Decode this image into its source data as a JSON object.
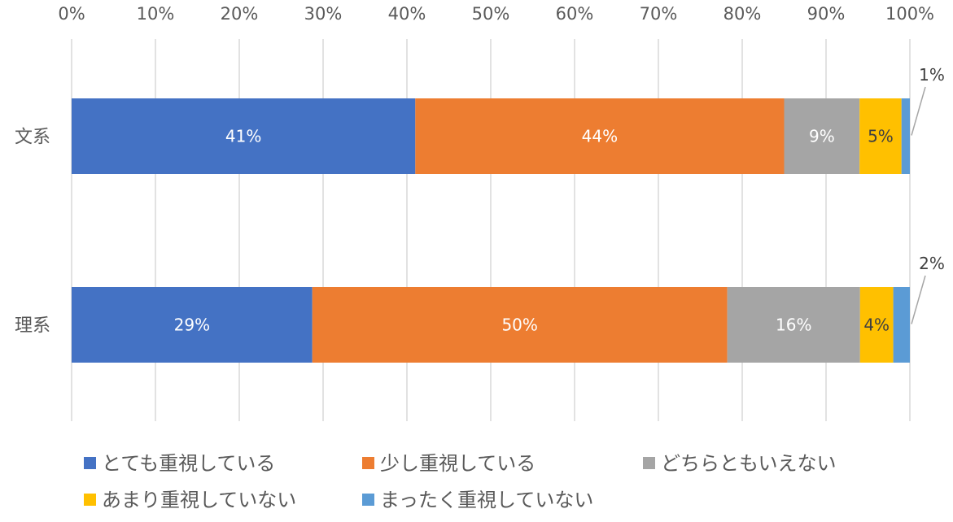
{
  "chart_data": {
    "type": "bar",
    "orientation": "horizontal",
    "stacked": true,
    "categories": [
      "文系",
      "理系"
    ],
    "series": [
      {
        "name": "とても重視している",
        "color": "#4472C4",
        "values": [
          41,
          29
        ],
        "labels": [
          "41%",
          "29%"
        ]
      },
      {
        "name": "少し重視している",
        "color": "#ED7D31",
        "values": [
          44,
          50
        ],
        "labels": [
          "44%",
          "50%"
        ]
      },
      {
        "name": "どちらともいえない",
        "color": "#A5A5A5",
        "values": [
          9,
          16
        ],
        "labels": [
          "9%",
          "16%"
        ]
      },
      {
        "name": "あまり重視していない",
        "color": "#FFC000",
        "values": [
          5,
          4
        ],
        "labels": [
          "5%",
          "4%"
        ]
      },
      {
        "name": "まったく重視していない",
        "color": "#5B9BD5",
        "values": [
          1,
          2
        ],
        "labels": [
          "1%",
          "2%"
        ]
      }
    ],
    "xticks": [
      "0%",
      "10%",
      "20%",
      "30%",
      "40%",
      "50%",
      "60%",
      "70%",
      "80%",
      "90%",
      "100%"
    ],
    "xlim": [
      0,
      100
    ],
    "axis_position": "top",
    "grid": true,
    "legend_position": "bottom"
  }
}
